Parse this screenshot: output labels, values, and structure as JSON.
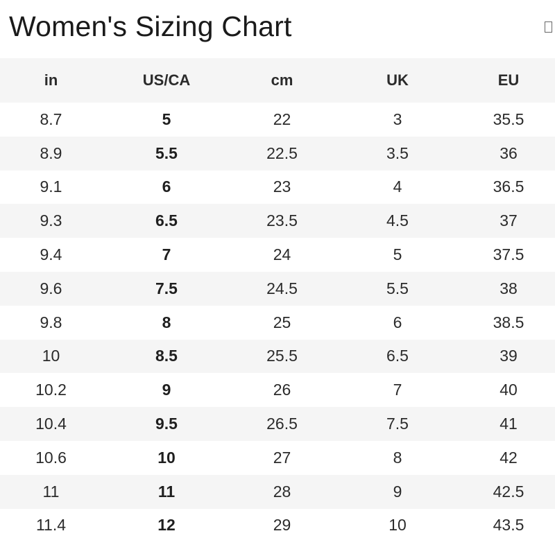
{
  "title": "Women's Sizing Chart",
  "close_icon": "close-icon",
  "columns": [
    "in",
    "US/CA",
    "cm",
    "UK",
    "EU"
  ],
  "rows": [
    [
      "8.7",
      "5",
      "22",
      "3",
      "35.5"
    ],
    [
      "8.9",
      "5.5",
      "22.5",
      "3.5",
      "36"
    ],
    [
      "9.1",
      "6",
      "23",
      "4",
      "36.5"
    ],
    [
      "9.3",
      "6.5",
      "23.5",
      "4.5",
      "37"
    ],
    [
      "9.4",
      "7",
      "24",
      "5",
      "37.5"
    ],
    [
      "9.6",
      "7.5",
      "24.5",
      "5.5",
      "38"
    ],
    [
      "9.8",
      "8",
      "25",
      "6",
      "38.5"
    ],
    [
      "10",
      "8.5",
      "25.5",
      "6.5",
      "39"
    ],
    [
      "10.2",
      "9",
      "26",
      "7",
      "40"
    ],
    [
      "10.4",
      "9.5",
      "26.5",
      "7.5",
      "41"
    ],
    [
      "10.6",
      "10",
      "27",
      "8",
      "42"
    ],
    [
      "11",
      "11",
      "28",
      "9",
      "42.5"
    ],
    [
      "11.4",
      "12",
      "29",
      "10",
      "43.5"
    ]
  ]
}
